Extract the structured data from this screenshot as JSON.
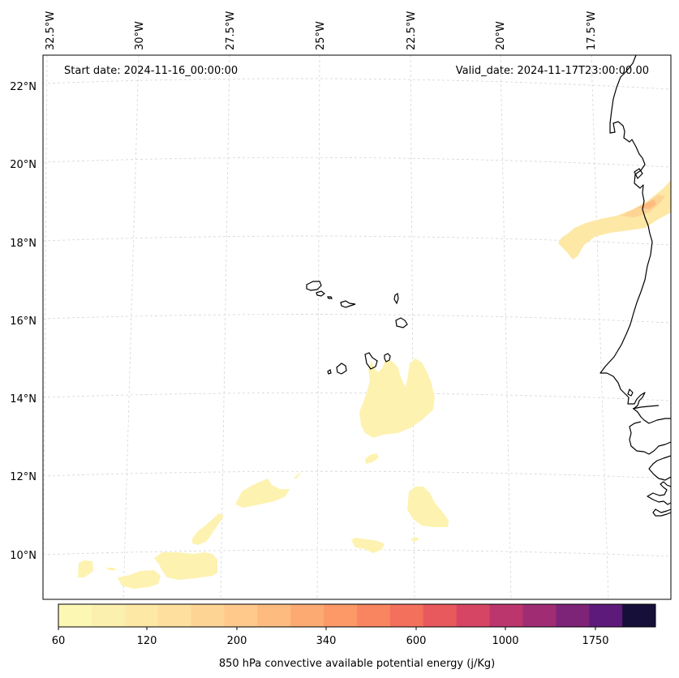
{
  "map": {
    "start_label": "Start date: 2024-11-16_00:00:00",
    "valid_label": "Valid_date: 2024-11-17T23:00:00.00",
    "lon_ticks": [
      "32.5°W",
      "30°W",
      "27.5°W",
      "25°W",
      "22.5°W",
      "20°W",
      "17.5°W"
    ],
    "lat_ticks": [
      "22°N",
      "20°N",
      "18°N",
      "16°N",
      "14°N",
      "12°N",
      "10°N"
    ]
  },
  "colorbar": {
    "label": "850 hPa convective available potential energy (j/Kg)",
    "tick_labels": [
      "60",
      "120",
      "200",
      "340",
      "600",
      "1000",
      "1750"
    ],
    "colors": [
      "#fcf8b4",
      "#fcf0ae",
      "#fde8a6",
      "#fedf9d",
      "#fed495",
      "#fec98a",
      "#febb7f",
      "#fdaa72",
      "#fd9867",
      "#f98560",
      "#f3705c",
      "#e8595e",
      "#d64664",
      "#bb366d",
      "#a02d74",
      "#7e2478",
      "#5e1a7a",
      "#160f3a"
    ]
  }
}
